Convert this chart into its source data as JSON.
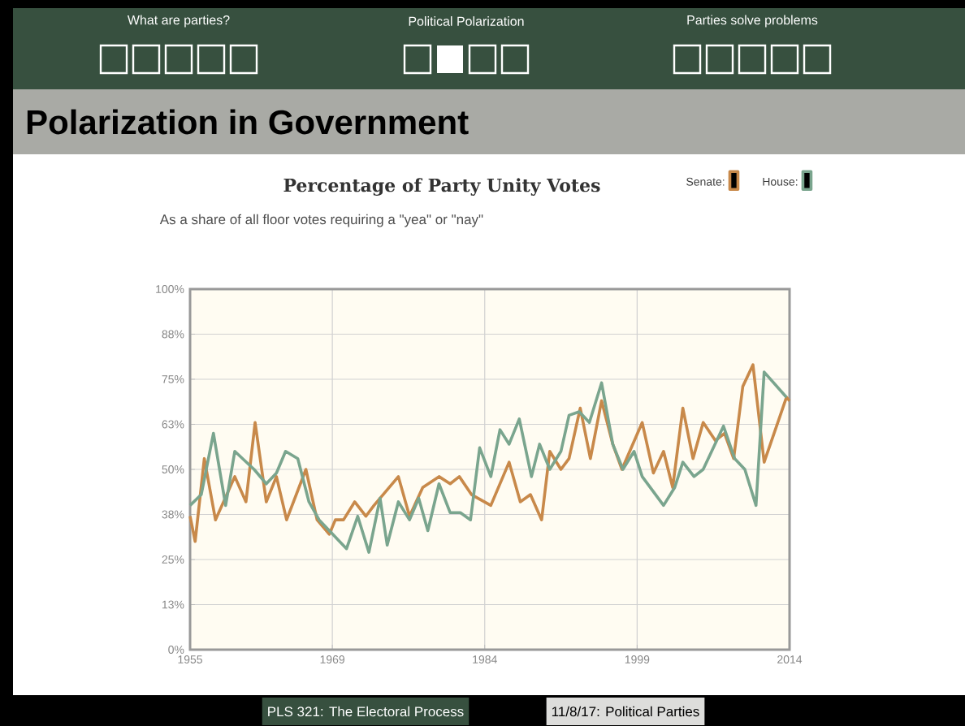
{
  "chart_data": {
    "type": "line",
    "title": "Percentage of Party Unity Votes",
    "subtitle": "As a share of all floor votes requiring a \"yea\" or \"nay\"",
    "annotations": [
      "What are parties?",
      "Political Polarization",
      "Parties solve problems",
      "Polarization in Government",
      "PLS 321: The Electoral Process",
      "11/8/17: Political Parties"
    ],
    "series": [
      {
        "name": "Senate:",
        "color": "#c8894a",
        "x": [
          1955.0,
          1955.5,
          1956.4,
          1957.5,
          1959.4,
          1960.5,
          1961.4,
          1962.5,
          1963.5,
          1964.5,
          1966.4,
          1967.5,
          1968.7,
          1969.3,
          1970.1,
          1971.2,
          1972.3,
          1973.1,
          1975.5,
          1976.6,
          1977.9,
          1979.5,
          1980.6,
          1981.5,
          1982.7,
          1984.6,
          1986.4,
          1987.5,
          1988.5,
          1989.6,
          1990.4,
          1991.5,
          1992.3,
          1993.4,
          1994.4,
          1995.5,
          1996.6,
          1997.5,
          1999.5,
          2000.6,
          2001.6,
          2002.5,
          2003.5,
          2004.5,
          2005.5,
          2006.7,
          2007.6,
          2008.5,
          2009.4,
          2010.4,
          2011.5,
          2013.7,
          2014.0
        ],
        "values": [
          37,
          30,
          53,
          36,
          48,
          41,
          63,
          41,
          48,
          36,
          50,
          36,
          32,
          36,
          36,
          41,
          37,
          40,
          48,
          37,
          45,
          48,
          46,
          48,
          43,
          40,
          52,
          41,
          43,
          36,
          55,
          50,
          53,
          67,
          53,
          69,
          57,
          50,
          63,
          49,
          55,
          45,
          67,
          53,
          63,
          58,
          60,
          53,
          73,
          79,
          52,
          70,
          69
        ]
      },
      {
        "name": "House:",
        "color": "#7aa58e",
        "x": [
          1955.0,
          1956.1,
          1957.3,
          1958.5,
          1959.4,
          1961.3,
          1962.5,
          1963.5,
          1964.4,
          1965.6,
          1966.7,
          1967.7,
          1970.4,
          1971.5,
          1972.6,
          1973.7,
          1974.4,
          1975.5,
          1976.6,
          1977.5,
          1978.4,
          1979.5,
          1980.6,
          1981.6,
          1982.6,
          1983.5,
          1984.6,
          1985.5,
          1986.4,
          1987.4,
          1988.6,
          1989.4,
          1990.4,
          1991.5,
          1992.3,
          1993.3,
          1994.3,
          1995.5,
          1996.6,
          1997.6,
          1998.7,
          1999.5,
          2001.6,
          2002.7,
          2003.5,
          2004.6,
          2005.5,
          2007.5,
          2008.6,
          2009.6,
          2010.7,
          2011.5,
          2013.7
        ],
        "values": [
          40,
          43,
          60,
          40,
          55,
          50,
          46,
          49,
          55,
          53,
          41,
          36,
          28,
          37,
          27,
          42,
          29,
          41,
          36,
          42,
          33,
          46,
          38,
          38,
          36,
          56,
          48,
          61,
          57,
          64,
          48,
          57,
          50,
          55,
          65,
          66,
          63,
          74,
          57,
          50,
          55,
          48,
          40,
          45,
          52,
          48,
          50,
          62,
          53,
          50,
          40,
          77,
          70
        ]
      }
    ],
    "xlim": [
      1955,
      2014
    ],
    "xticks": [
      1955,
      1969,
      1984,
      1999,
      2014
    ],
    "ylim": [
      0,
      100
    ],
    "yticks": [
      {
        "value": 0,
        "label": "0%"
      },
      {
        "value": 12.5,
        "label": "13%"
      },
      {
        "value": 25,
        "label": "25%"
      },
      {
        "value": 37.5,
        "label": "38%"
      },
      {
        "value": 50,
        "label": "50%"
      },
      {
        "value": 62.5,
        "label": "63%"
      },
      {
        "value": 75,
        "label": "75%"
      },
      {
        "value": 87.5,
        "label": "88%"
      },
      {
        "value": 100,
        "label": "100%"
      }
    ],
    "grid": true,
    "legend": "top right"
  }
}
